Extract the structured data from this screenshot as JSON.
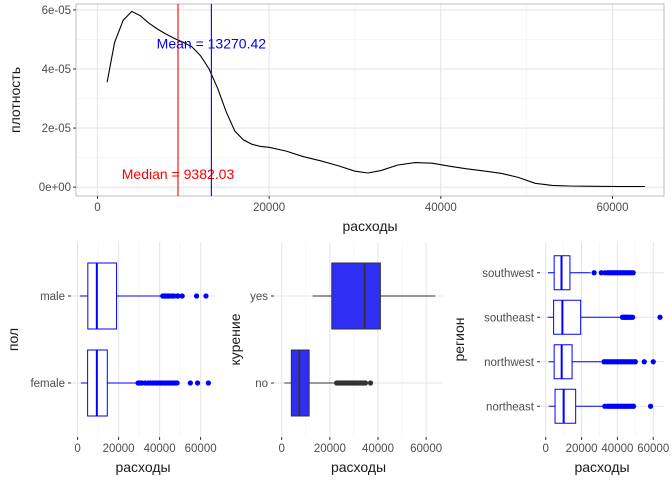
{
  "chart_data": [
    {
      "type": "line",
      "xlabel": "расходы",
      "ylabel": "плотность",
      "xlim": [
        -2500,
        66000
      ],
      "ylim": [
        -3e-06,
        6.2e-05
      ],
      "x_ticks": [
        0,
        20000,
        40000,
        60000
      ],
      "x_tick_labels": [
        "0",
        "20000",
        "40000",
        "60000"
      ],
      "y_ticks": [
        0,
        2e-05,
        4e-05,
        6e-05
      ],
      "y_tick_labels": [
        "0e+00",
        "2e-05",
        "4e-05",
        "6e-05"
      ],
      "grid": true,
      "series": [
        {
          "color": "#000000",
          "x": [
            1122,
            2000,
            3000,
            4000,
            5000,
            6000,
            7000,
            8000,
            9000,
            10000,
            11000,
            12000,
            13000,
            14000,
            15000,
            16000,
            17000,
            18000,
            19000,
            20000,
            22000,
            24000,
            26000,
            28000,
            30000,
            31500,
            33000,
            35000,
            37000,
            39000,
            41000,
            43000,
            45000,
            47000,
            49000,
            51000,
            53000,
            55000,
            58000,
            61000,
            63770
          ],
          "y": [
            3.55e-05,
            4.9e-05,
            5.65e-05,
            5.95e-05,
            5.8e-05,
            5.55e-05,
            5.35e-05,
            5.18e-05,
            5.03e-05,
            4.9e-05,
            4.75e-05,
            4.45e-05,
            4e-05,
            3.35e-05,
            2.55e-05,
            1.9e-05,
            1.6e-05,
            1.45e-05,
            1.38e-05,
            1.35e-05,
            1.22e-05,
            1.03e-05,
            8.9e-06,
            7.3e-06,
            5.4e-06,
            4.8e-06,
            5.6e-06,
            7.5e-06,
            8.3e-06,
            8.1e-06,
            7.1e-06,
            6.2e-06,
            5.5e-06,
            4.7e-06,
            3.3e-06,
            1.3e-06,
            6e-07,
            4e-07,
            3e-07,
            2e-07,
            2e-07
          ]
        }
      ],
      "vlines": [
        {
          "x": 9382.03,
          "color": "#ff0000",
          "label": "Median = 9382.03",
          "label_x": 9382.03,
          "label_y": 4.5e-06
        },
        {
          "x": 13270.42,
          "color": "#0000ff",
          "label": "Mean = 13270.42",
          "label_x": 13270.42,
          "label_y": 4.86e-05
        }
      ]
    },
    {
      "type": "box",
      "orientation": "horizontal",
      "xlabel": "расходы",
      "ylabel": "пол",
      "xlim": [
        -3200,
        67000
      ],
      "x_ticks": [
        0,
        20000,
        40000,
        60000
      ],
      "x_tick_labels": [
        "0",
        "20000",
        "40000",
        "60000"
      ],
      "categories": [
        "male",
        "female"
      ],
      "fill": "#ffffff",
      "line_color": "#0000ff",
      "outlier_color": "#0000ff",
      "boxes": [
        {
          "whisker_low": 1122,
          "q1": 5000,
          "median": 9400,
          "q3": 19000,
          "whisker_high": 40500,
          "outliers": [
            41500,
            42000,
            42500,
            43000,
            43500,
            44000,
            44500,
            45000,
            46000,
            47000,
            48500,
            49000,
            51000,
            58000,
            62600
          ]
        },
        {
          "whisker_low": 1608,
          "q1": 4900,
          "median": 9400,
          "q3": 14500,
          "whisker_high": 28500,
          "outliers": [
            29500,
            30500,
            31500,
            33000,
            34500,
            35500,
            36500,
            37500,
            38500,
            39500,
            40500,
            41500,
            42500,
            43500,
            44500,
            45500,
            46500,
            47500,
            48500,
            55000,
            58500,
            63770
          ]
        }
      ]
    },
    {
      "type": "box",
      "orientation": "horizontal",
      "xlabel": "расходы",
      "ylabel": "курение",
      "xlim": [
        -3200,
        67000
      ],
      "x_ticks": [
        0,
        20000,
        40000,
        60000
      ],
      "x_tick_labels": [
        "0",
        "20000",
        "40000",
        "60000"
      ],
      "categories": [
        "yes",
        "no"
      ],
      "fill": "#2e2ef5",
      "line_color": "#333333",
      "outlier_color": "#333333",
      "boxes": [
        {
          "whisker_low": 12829,
          "q1": 20800,
          "median": 34500,
          "q3": 41000,
          "whisker_high": 63770,
          "outliers": []
        },
        {
          "whisker_low": 1122,
          "q1": 4000,
          "median": 7300,
          "q3": 11400,
          "whisker_high": 22200,
          "outliers": [
            22800,
            23400,
            24000,
            24600,
            25200,
            25800,
            26400,
            27000,
            27600,
            28200,
            28800,
            29400,
            30000,
            30600,
            31200,
            31800,
            32400,
            33000,
            33600,
            34200,
            34800,
            36900
          ]
        }
      ]
    },
    {
      "type": "box",
      "orientation": "horizontal",
      "xlabel": "расходы",
      "ylabel": "регион",
      "xlim": [
        -3200,
        66000
      ],
      "x_ticks": [
        0,
        20000,
        40000,
        60000
      ],
      "x_tick_labels": [
        "0",
        "20000",
        "40000",
        "60000"
      ],
      "categories": [
        "southwest",
        "southeast",
        "northwest",
        "northeast"
      ],
      "fill": "#ffffff",
      "line_color": "#0000ff",
      "outlier_color": "#0000ff",
      "boxes": [
        {
          "whisker_low": 1242,
          "q1": 4700,
          "median": 8800,
          "q3": 13500,
          "whisker_high": 25000,
          "outliers": [
            27000,
            31000,
            33000,
            34500,
            35500,
            36500,
            37500,
            38500,
            39500,
            40500,
            41500,
            42500,
            43500,
            44500,
            45500,
            46500,
            47500,
            48800
          ]
        },
        {
          "whisker_low": 1122,
          "q1": 4400,
          "median": 9300,
          "q3": 19500,
          "whisker_high": 42000,
          "outliers": [
            42800,
            43500,
            44000,
            44500,
            45000,
            45500,
            46000,
            47000,
            47500,
            48500,
            63770
          ]
        },
        {
          "whisker_low": 1621,
          "q1": 4700,
          "median": 8900,
          "q3": 14700,
          "whisker_high": 31000,
          "outliers": [
            32500,
            33500,
            34500,
            35500,
            36500,
            37500,
            38500,
            39500,
            40500,
            41500,
            42500,
            43500,
            44500,
            45500,
            46500,
            47500,
            48500,
            49500,
            50000,
            55000,
            60000
          ]
        },
        {
          "whisker_low": 1694,
          "q1": 5200,
          "median": 10000,
          "q3": 16700,
          "whisker_high": 32000,
          "outliers": [
            33000,
            34500,
            35500,
            36500,
            37500,
            38500,
            39500,
            40500,
            41500,
            42500,
            43500,
            44500,
            45500,
            46500,
            47500,
            48500,
            49000,
            58500
          ]
        }
      ]
    }
  ]
}
